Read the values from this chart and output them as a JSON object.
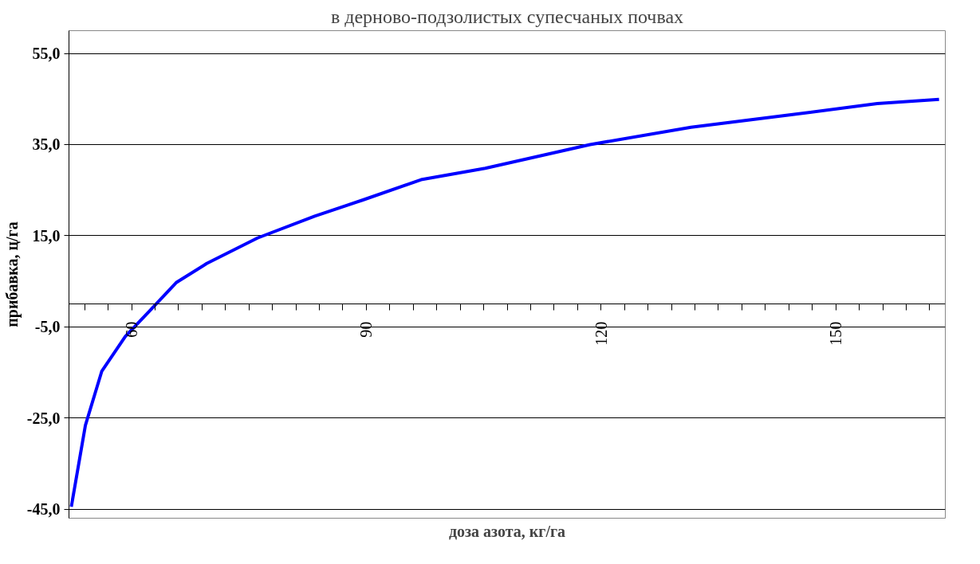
{
  "chart_data": {
    "type": "line",
    "title": "в дерново-подзолистых супесчаных почвах",
    "xlabel": "доза азота, кг/га",
    "ylabel": "прибавка, ц/га",
    "series": [
      {
        "color": "#0000ff",
        "x": [
          52.3,
          54.1,
          56.2,
          59.2,
          62.3,
          65.7,
          69.6,
          76.1,
          83.4,
          89.5,
          97.0,
          105.2,
          118.6,
          131.5,
          144.5,
          155.3,
          163.2
        ],
        "values": [
          -44.5,
          -26.6,
          -14.7,
          -7.1,
          -1.5,
          4.7,
          8.9,
          14.5,
          19.3,
          22.8,
          27.3,
          29.8,
          35.0,
          38.8,
          41.6,
          44.0,
          44.9
        ]
      }
    ],
    "xlim": [
      52,
      164
    ],
    "ylim": [
      -47,
      60
    ],
    "xticks": [
      {
        "value": 54,
        "label": null
      },
      {
        "value": 57,
        "label": null
      },
      {
        "value": 60,
        "label": "60"
      },
      {
        "value": 63,
        "label": null
      },
      {
        "value": 66,
        "label": null
      },
      {
        "value": 69,
        "label": null
      },
      {
        "value": 72,
        "label": null
      },
      {
        "value": 75,
        "label": null
      },
      {
        "value": 78,
        "label": null
      },
      {
        "value": 81,
        "label": null
      },
      {
        "value": 84,
        "label": null
      },
      {
        "value": 87,
        "label": null
      },
      {
        "value": 90,
        "label": "90"
      },
      {
        "value": 93,
        "label": null
      },
      {
        "value": 96,
        "label": null
      },
      {
        "value": 99,
        "label": null
      },
      {
        "value": 102,
        "label": null
      },
      {
        "value": 105,
        "label": null
      },
      {
        "value": 108,
        "label": null
      },
      {
        "value": 111,
        "label": null
      },
      {
        "value": 114,
        "label": null
      },
      {
        "value": 117,
        "label": null
      },
      {
        "value": 120,
        "label": "120"
      },
      {
        "value": 123,
        "label": null
      },
      {
        "value": 126,
        "label": null
      },
      {
        "value": 129,
        "label": null
      },
      {
        "value": 132,
        "label": null
      },
      {
        "value": 135,
        "label": null
      },
      {
        "value": 138,
        "label": null
      },
      {
        "value": 141,
        "label": null
      },
      {
        "value": 144,
        "label": null
      },
      {
        "value": 147,
        "label": null
      },
      {
        "value": 150,
        "label": "150"
      },
      {
        "value": 153,
        "label": null
      },
      {
        "value": 156,
        "label": null
      },
      {
        "value": 159,
        "label": null
      },
      {
        "value": 162,
        "label": null
      }
    ],
    "yticks": [
      {
        "value": 55,
        "label": "55,0"
      },
      {
        "value": 35,
        "label": "35,0"
      },
      {
        "value": 15,
        "label": "15,0"
      },
      {
        "value": -5,
        "label": "-5,0"
      },
      {
        "value": -25,
        "label": "-25,0"
      },
      {
        "value": -45,
        "label": "-45,0"
      }
    ],
    "grid": "y",
    "marker": "none",
    "line_style": "solid"
  }
}
